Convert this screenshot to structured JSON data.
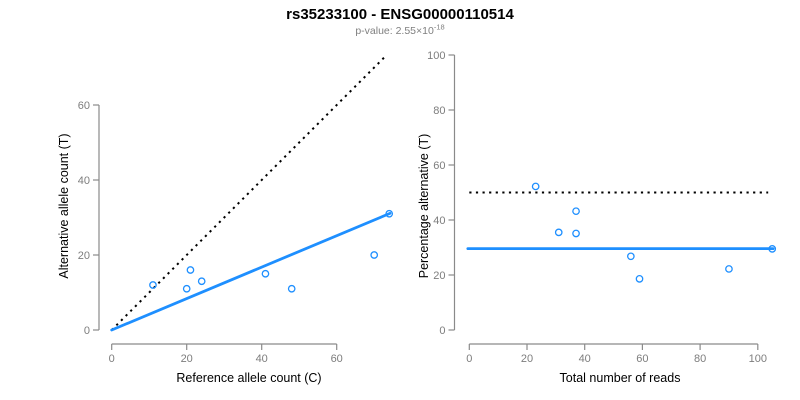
{
  "header": {
    "title": "rs35233100 - ENSG00000110514",
    "subtitle_prefix": "p-value: 2.55×10",
    "subtitle_exponent": "-18"
  },
  "colors": {
    "accent_blue": "#1e8fff",
    "dotted_black": "#000000",
    "axis_gray": "#8a8a8a",
    "tick_label_gray": "#7d7d7d",
    "title_black": "#000000",
    "subtitle_gray": "#7f7f7f"
  },
  "chart_data": [
    {
      "type": "scatter",
      "xlabel": "Reference allele count (C)",
      "ylabel": "Alternative allele count (T)",
      "xlim": [
        0,
        74
      ],
      "ylim": [
        0,
        74
      ],
      "xticks": [
        0,
        20,
        40,
        60
      ],
      "yticks": [
        0,
        20,
        40,
        60
      ],
      "grid": false,
      "points": [
        [
          11,
          12
        ],
        [
          20,
          11
        ],
        [
          21,
          16
        ],
        [
          24,
          13
        ],
        [
          41,
          15
        ],
        [
          48,
          11
        ],
        [
          70,
          20
        ],
        [
          74,
          31
        ]
      ],
      "lines": [
        {
          "name": "identity-line",
          "style": "dotted",
          "color": "#000000",
          "x1": 0,
          "y1": 0,
          "x2": 73.3,
          "y2": 73.3
        },
        {
          "name": "fit-line",
          "style": "solid",
          "color": "#1e8fff",
          "x1": 0,
          "y1": 0,
          "x2": 74.2,
          "y2": 31.1
        }
      ]
    },
    {
      "type": "scatter",
      "xlabel": "Total number of reads",
      "ylabel": "Percentage alternative (T)",
      "xlim": [
        0,
        105.4
      ],
      "ylim": [
        0,
        100
      ],
      "xticks": [
        0,
        20,
        40,
        60,
        80,
        100
      ],
      "yticks": [
        0,
        20,
        40,
        60,
        80,
        100
      ],
      "grid": false,
      "points": [
        [
          23,
          52.2
        ],
        [
          31,
          35.5
        ],
        [
          37,
          43.2
        ],
        [
          37,
          35.1
        ],
        [
          56,
          26.8
        ],
        [
          59,
          18.6
        ],
        [
          90,
          22.2
        ],
        [
          105,
          29.5
        ]
      ],
      "lines": [
        {
          "name": "fifty-percent-line",
          "style": "dotted",
          "color": "#000000",
          "x1": 0,
          "y1": 50,
          "x2": 103.6,
          "y2": 50
        },
        {
          "name": "mean-percentage-line",
          "style": "solid",
          "color": "#1e8fff",
          "x1": -0.5,
          "y1": 29.6,
          "x2": 105.3,
          "y2": 29.6
        }
      ]
    }
  ]
}
